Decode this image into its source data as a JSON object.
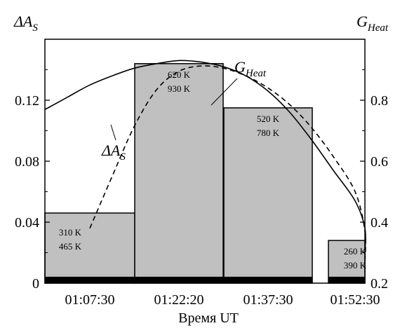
{
  "chart_data": {
    "type": "bar",
    "xlabel": "Время UT",
    "categories": [
      "01:07:30",
      "01:22:20",
      "01:37:30",
      "01:52:30"
    ],
    "left_axis": {
      "label_main": "ΔA",
      "label_sub": "S",
      "ylim": [
        0,
        0.16
      ],
      "ticks": [
        "0",
        "0.04",
        "0.08",
        "0.12"
      ]
    },
    "right_axis": {
      "label_main": "G",
      "label_sub": "Heat",
      "ylim": [
        0.2,
        1.0
      ],
      "ticks": [
        "0.2",
        "0.4",
        "0.6",
        "0.8"
      ]
    },
    "bars": [
      {
        "value": 0.046,
        "lines": [
          "310 K",
          "465 K"
        ]
      },
      {
        "value": 0.144,
        "lines": [
          "620 K",
          "930 K"
        ]
      },
      {
        "value": 0.115,
        "lines": [
          "520 K",
          "780 K"
        ]
      },
      {
        "value": 0.028,
        "lines": [
          "260 K",
          "390 K"
        ]
      }
    ],
    "bar_base": {
      "value": 0.0042,
      "color": "#000000"
    },
    "bar_color": "#c0c0c0",
    "series": [
      {
        "label_main": "ΔA",
        "label_sub": "S",
        "style": "dashed",
        "axis": "left",
        "x": [
          0.0,
          0.25,
          0.5,
          0.75,
          1.0,
          1.25,
          1.5,
          1.75,
          2.0,
          2.25,
          2.5,
          2.75,
          3.0,
          3.25,
          3.5
        ],
        "y": [
          0.036,
          0.07,
          0.103,
          0.127,
          0.139,
          0.1425,
          0.141,
          0.136,
          0.128,
          0.117,
          0.102,
          0.083,
          0.06,
          0.034,
          0.013
        ]
      },
      {
        "label_main": "G",
        "label_sub": "Heat",
        "style": "solid",
        "axis": "right",
        "x": [
          -0.5,
          -0.25,
          0.0,
          0.25,
          0.5,
          0.75,
          1.0,
          1.25,
          1.5,
          1.75,
          2.0,
          2.25,
          2.5,
          2.75,
          3.0,
          3.25,
          3.5
        ],
        "y": [
          0.77,
          0.81,
          0.85,
          0.88,
          0.905,
          0.92,
          0.93,
          0.925,
          0.91,
          0.88,
          0.83,
          0.76,
          0.67,
          0.57,
          0.47,
          0.38,
          0.3
        ]
      }
    ]
  }
}
